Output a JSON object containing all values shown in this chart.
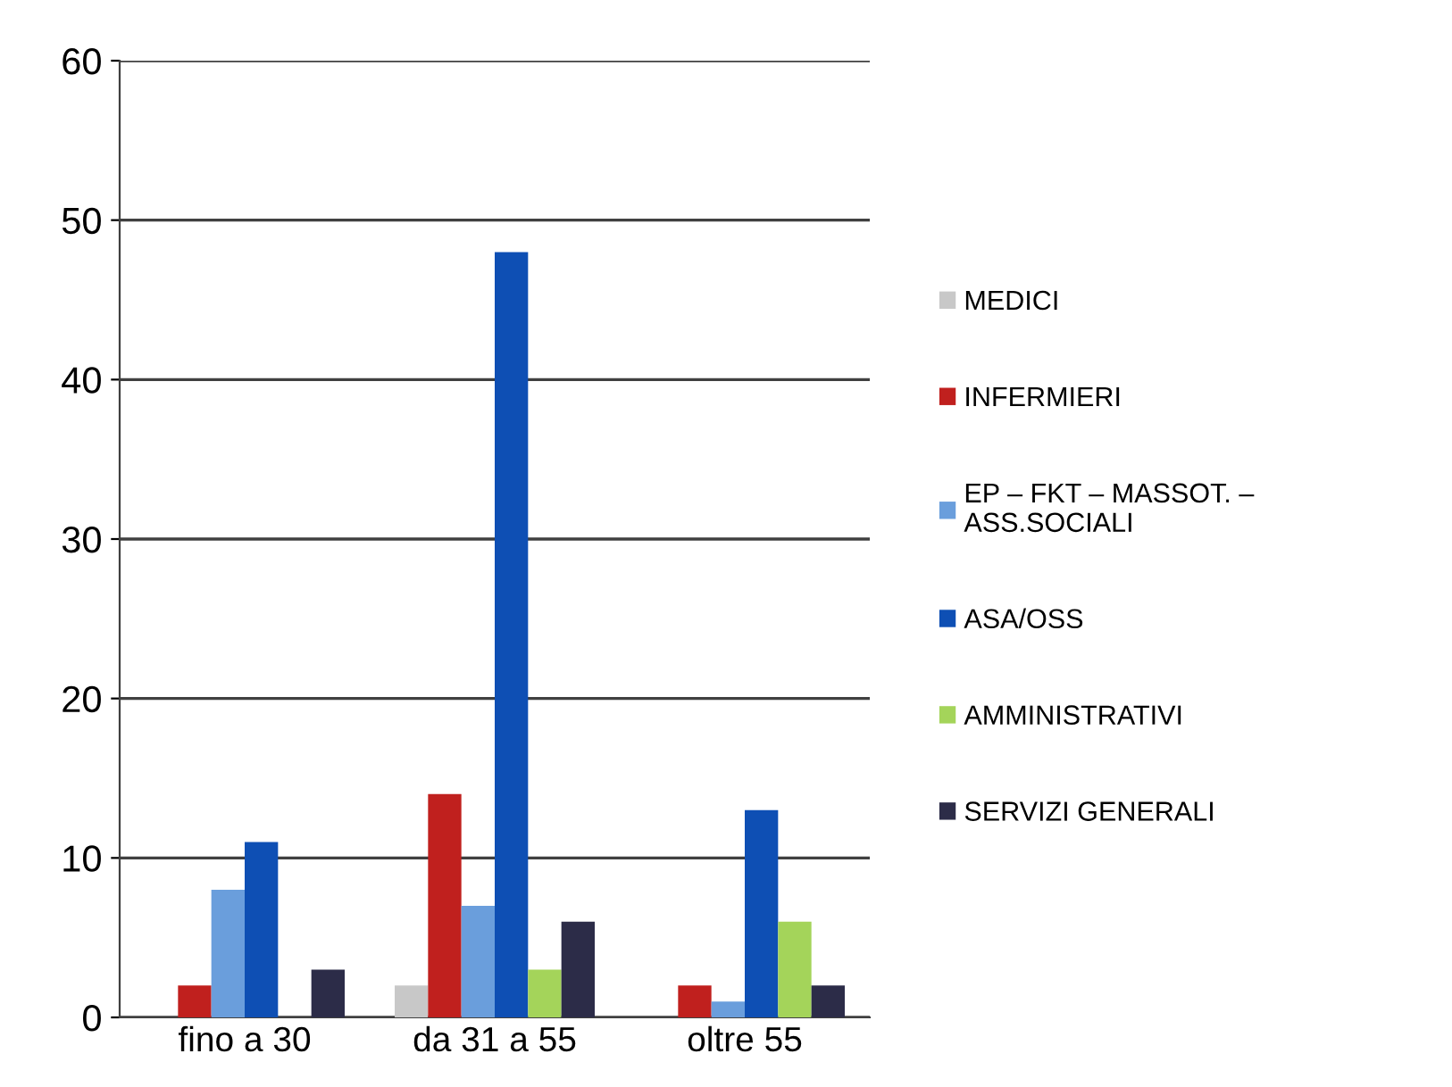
{
  "chart_data": {
    "type": "bar",
    "categories": [
      "fino a 30",
      "da 31 a 55",
      "oltre 55"
    ],
    "series": [
      {
        "name": "MEDICI",
        "color": "#c8c8c8",
        "values": [
          0,
          2,
          0
        ]
      },
      {
        "name": "INFERMIERI",
        "color": "#c0201e",
        "values": [
          2,
          14,
          2
        ]
      },
      {
        "name": "EP – FKT – MASSOT. –\nASS.SOCIALI",
        "color": "#6a9edc",
        "values": [
          8,
          7,
          1
        ]
      },
      {
        "name": "ASA/OSS",
        "color": "#0e4fb4",
        "values": [
          11,
          48,
          13
        ]
      },
      {
        "name": "AMMINISTRATIVI",
        "color": "#a4d45a",
        "values": [
          0,
          3,
          6
        ]
      },
      {
        "name": "SERVIZI GENERALI",
        "color": "#2c2c48",
        "values": [
          3,
          6,
          2
        ]
      }
    ],
    "ylim": [
      0,
      60
    ],
    "yticks": [
      0,
      10,
      20,
      30,
      40,
      50,
      60
    ],
    "grid": "y",
    "legend": "right"
  }
}
